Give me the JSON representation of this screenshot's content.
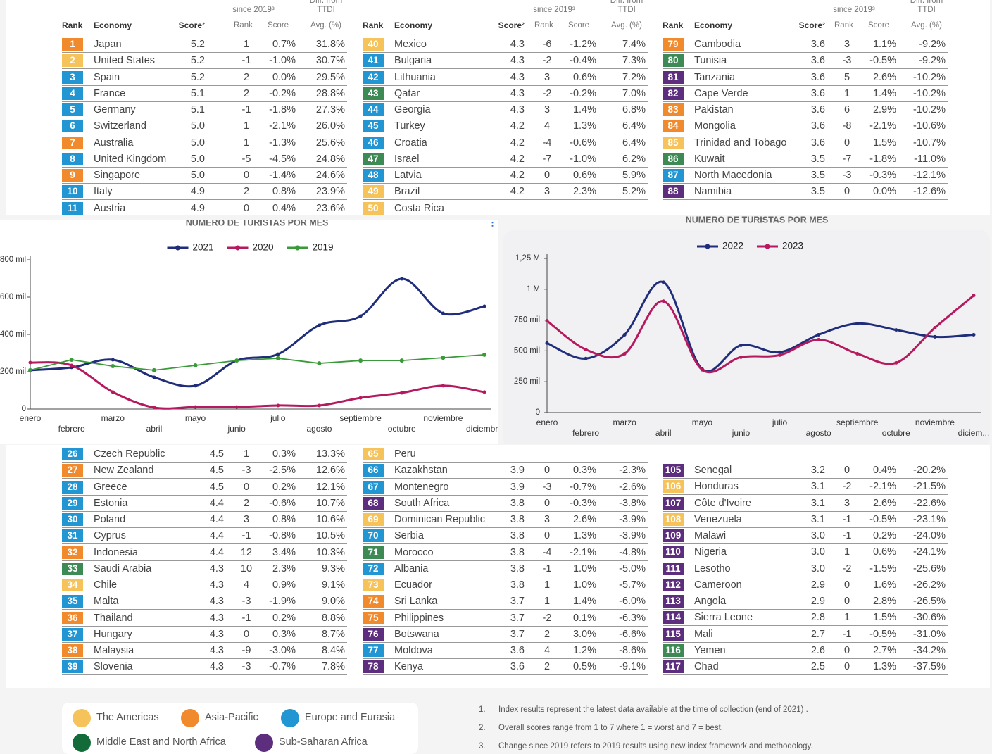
{
  "header": {
    "rank": "Rank",
    "economy": "Economy",
    "score": "Score²",
    "change": "since 2019³",
    "change_rank": "Rank",
    "change_score": "Score",
    "diff": "Diff. from",
    "diff_2": "TTDI",
    "diff_unit": "Avg. (%)"
  },
  "tables": [
    {
      "rows": [
        {
          "cells": [
            "1",
            "Japan",
            "5.2",
            "1",
            "0.7%",
            "31.8%"
          ],
          "color": "#f08a2c"
        },
        {
          "cells": [
            "2",
            "United States",
            "5.2",
            "-1",
            "-1.0%",
            "30.7%"
          ],
          "color": "#f6c25a"
        },
        {
          "cells": [
            "3",
            "Spain",
            "5.2",
            "2",
            "0.0%",
            "29.5%"
          ],
          "color": "#2196d3"
        },
        {
          "cells": [
            "4",
            "France",
            "5.1",
            "2",
            "-0.2%",
            "28.8%"
          ],
          "color": "#2196d3"
        },
        {
          "cells": [
            "5",
            "Germany",
            "5.1",
            "-1",
            "-1.8%",
            "27.3%"
          ],
          "color": "#2196d3"
        },
        {
          "cells": [
            "6",
            "Switzerland",
            "5.0",
            "1",
            "-2.1%",
            "26.0%"
          ],
          "color": "#2196d3"
        },
        {
          "cells": [
            "7",
            "Australia",
            "5.0",
            "1",
            "-1.3%",
            "25.6%"
          ],
          "color": "#f08a2c"
        },
        {
          "cells": [
            "8",
            "United Kingdom",
            "5.0",
            "-5",
            "-4.5%",
            "24.8%"
          ],
          "color": "#2196d3"
        },
        {
          "cells": [
            "9",
            "Singapore",
            "5.0",
            "0",
            "-1.4%",
            "24.6%"
          ],
          "color": "#f08a2c"
        },
        {
          "cells": [
            "10",
            "Italy",
            "4.9",
            "2",
            "0.8%",
            "23.9%"
          ],
          "color": "#2196d3"
        },
        {
          "cells": [
            "11",
            "Austria",
            "4.9",
            "0",
            "0.4%",
            "23.6%"
          ],
          "color": "#2196d3"
        }
      ]
    },
    {
      "rows": [
        {
          "cells": [
            "40",
            "Mexico",
            "4.3",
            "-6",
            "-1.2%",
            "7.4%"
          ],
          "color": "#f6c25a"
        },
        {
          "cells": [
            "41",
            "Bulgaria",
            "4.3",
            "-2",
            "-0.4%",
            "7.3%"
          ],
          "color": "#2196d3"
        },
        {
          "cells": [
            "42",
            "Lithuania",
            "4.3",
            "3",
            "0.6%",
            "7.2%"
          ],
          "color": "#2196d3"
        },
        {
          "cells": [
            "43",
            "Qatar",
            "4.3",
            "-2",
            "-0.2%",
            "7.0%"
          ],
          "color": "#3d8a55"
        },
        {
          "cells": [
            "44",
            "Georgia",
            "4.3",
            "3",
            "1.4%",
            "6.8%"
          ],
          "color": "#2196d3"
        },
        {
          "cells": [
            "45",
            "Turkey",
            "4.2",
            "4",
            "1.3%",
            "6.4%"
          ],
          "color": "#2196d3"
        },
        {
          "cells": [
            "46",
            "Croatia",
            "4.2",
            "-4",
            "-0.6%",
            "6.4%"
          ],
          "color": "#2196d3"
        },
        {
          "cells": [
            "47",
            "Israel",
            "4.2",
            "-7",
            "-1.0%",
            "6.2%"
          ],
          "color": "#3d8a55"
        },
        {
          "cells": [
            "48",
            "Latvia",
            "4.2",
            "0",
            "0.6%",
            "5.9%"
          ],
          "color": "#2196d3"
        },
        {
          "cells": [
            "49",
            "Brazil",
            "4.2",
            "3",
            "2.3%",
            "5.2%"
          ],
          "color": "#f6c25a"
        },
        {
          "cells": [
            "50",
            "Costa Rica"
          ],
          "color": "#f6c25a"
        }
      ]
    },
    {
      "rows": [
        {
          "cells": [
            "79",
            "Cambodia",
            "3.6",
            "3",
            "1.1%",
            "-9.2%"
          ],
          "color": "#f08a2c"
        },
        {
          "cells": [
            "80",
            "Tunisia",
            "3.6",
            "-3",
            "-0.5%",
            "-9.2%"
          ],
          "color": "#3d8a55"
        },
        {
          "cells": [
            "81",
            "Tanzania",
            "3.6",
            "5",
            "2.6%",
            "-10.2%"
          ],
          "color": "#5e2e7e"
        },
        {
          "cells": [
            "82",
            "Cape Verde",
            "3.6",
            "1",
            "1.4%",
            "-10.2%"
          ],
          "color": "#5e2e7e"
        },
        {
          "cells": [
            "83",
            "Pakistan",
            "3.6",
            "6",
            "2.9%",
            "-10.2%"
          ],
          "color": "#f08a2c"
        },
        {
          "cells": [
            "84",
            "Mongolia",
            "3.6",
            "-8",
            "-2.1%",
            "-10.6%"
          ],
          "color": "#f08a2c"
        },
        {
          "cells": [
            "85",
            "Trinidad and Tobago",
            "3.6",
            "0",
            "1.5%",
            "-10.7%"
          ],
          "color": "#f6c25a"
        },
        {
          "cells": [
            "86",
            "Kuwait",
            "3.5",
            "-7",
            "-1.8%",
            "-11.0%"
          ],
          "color": "#3d8a55"
        },
        {
          "cells": [
            "87",
            "North Macedonia",
            "3.5",
            "-3",
            "-0.3%",
            "-12.1%"
          ],
          "color": "#2196d3"
        },
        {
          "cells": [
            "88",
            "Namibia",
            "3.5",
            "0",
            "0.0%",
            "-12.6%"
          ],
          "color": "#5e2e7e"
        }
      ]
    },
    {
      "rows": [
        {
          "cells": [
            "26",
            "Czech Republic",
            "4.5",
            "1",
            "0.3%",
            "13.3%"
          ],
          "color": "#2196d3"
        },
        {
          "cells": [
            "27",
            "New Zealand",
            "4.5",
            "-3",
            "-2.5%",
            "12.6%"
          ],
          "color": "#f08a2c"
        },
        {
          "cells": [
            "28",
            "Greece",
            "4.5",
            "0",
            "0.2%",
            "12.1%"
          ],
          "color": "#2196d3"
        },
        {
          "cells": [
            "29",
            "Estonia",
            "4.4",
            "2",
            "-0.6%",
            "10.7%"
          ],
          "color": "#2196d3"
        },
        {
          "cells": [
            "30",
            "Poland",
            "4.4",
            "3",
            "0.8%",
            "10.6%"
          ],
          "color": "#2196d3"
        },
        {
          "cells": [
            "31",
            "Cyprus",
            "4.4",
            "-1",
            "-0.8%",
            "10.5%"
          ],
          "color": "#2196d3"
        },
        {
          "cells": [
            "32",
            "Indonesia",
            "4.4",
            "12",
            "3.4%",
            "10.3%"
          ],
          "color": "#f08a2c"
        },
        {
          "cells": [
            "33",
            "Saudi Arabia",
            "4.3",
            "10",
            "2.3%",
            "9.3%"
          ],
          "color": "#3d8a55"
        },
        {
          "cells": [
            "34",
            "Chile",
            "4.3",
            "4",
            "0.9%",
            "9.1%"
          ],
          "color": "#f6c25a"
        },
        {
          "cells": [
            "35",
            "Malta",
            "4.3",
            "-3",
            "-1.9%",
            "9.0%"
          ],
          "color": "#2196d3"
        },
        {
          "cells": [
            "36",
            "Thailand",
            "4.3",
            "-1",
            "0.2%",
            "8.8%"
          ],
          "color": "#f08a2c"
        },
        {
          "cells": [
            "37",
            "Hungary",
            "4.3",
            "0",
            "0.3%",
            "8.7%"
          ],
          "color": "#2196d3"
        },
        {
          "cells": [
            "38",
            "Malaysia",
            "4.3",
            "-9",
            "-3.0%",
            "8.4%"
          ],
          "color": "#f08a2c"
        },
        {
          "cells": [
            "39",
            "Slovenia",
            "4.3",
            "-3",
            "-0.7%",
            "7.8%"
          ],
          "color": "#2196d3"
        }
      ]
    },
    {
      "rows": [
        {
          "cells": [
            "65",
            "Peru"
          ],
          "color": "#f6c25a"
        },
        {
          "cells": [
            "66",
            "Kazakhstan",
            "3.9",
            "0",
            "0.3%",
            "-2.3%"
          ],
          "color": "#2196d3"
        },
        {
          "cells": [
            "67",
            "Montenegro",
            "3.9",
            "-3",
            "-0.7%",
            "-2.6%"
          ],
          "color": "#2196d3"
        },
        {
          "cells": [
            "68",
            "South Africa",
            "3.8",
            "0",
            "-0.3%",
            "-3.8%"
          ],
          "color": "#5e2e7e"
        },
        {
          "cells": [
            "69",
            "Dominican Republic",
            "3.8",
            "3",
            "2.6%",
            "-3.9%"
          ],
          "color": "#f6c25a"
        },
        {
          "cells": [
            "70",
            "Serbia",
            "3.8",
            "0",
            "1.3%",
            "-3.9%"
          ],
          "color": "#2196d3"
        },
        {
          "cells": [
            "71",
            "Morocco",
            "3.8",
            "-4",
            "-2.1%",
            "-4.8%"
          ],
          "color": "#3d8a55"
        },
        {
          "cells": [
            "72",
            "Albania",
            "3.8",
            "-1",
            "1.0%",
            "-5.0%"
          ],
          "color": "#2196d3"
        },
        {
          "cells": [
            "73",
            "Ecuador",
            "3.8",
            "1",
            "1.0%",
            "-5.7%"
          ],
          "color": "#f6c25a"
        },
        {
          "cells": [
            "74",
            "Sri Lanka",
            "3.7",
            "1",
            "1.4%",
            "-6.0%"
          ],
          "color": "#f08a2c"
        },
        {
          "cells": [
            "75",
            "Philippines",
            "3.7",
            "-2",
            "0.1%",
            "-6.3%"
          ],
          "color": "#f08a2c"
        },
        {
          "cells": [
            "76",
            "Botswana",
            "3.7",
            "2",
            "3.0%",
            "-6.6%"
          ],
          "color": "#5e2e7e"
        },
        {
          "cells": [
            "77",
            "Moldova",
            "3.6",
            "4",
            "1.2%",
            "-8.6%"
          ],
          "color": "#2196d3"
        },
        {
          "cells": [
            "78",
            "Kenya",
            "3.6",
            "2",
            "0.5%",
            "-9.1%"
          ],
          "color": "#5e2e7e"
        }
      ]
    },
    {
      "rows": [
        {
          "cells": [
            "105",
            "Senegal",
            "3.2",
            "0",
            "0.4%",
            "-20.2%"
          ],
          "color": "#5e2e7e"
        },
        {
          "cells": [
            "106",
            "Honduras",
            "3.1",
            "-2",
            "-2.1%",
            "-21.5%"
          ],
          "color": "#f6c25a"
        },
        {
          "cells": [
            "107",
            "Côte d'Ivoire",
            "3.1",
            "3",
            "2.6%",
            "-22.6%"
          ],
          "color": "#5e2e7e"
        },
        {
          "cells": [
            "108",
            "Venezuela",
            "3.1",
            "-1",
            "-0.5%",
            "-23.1%"
          ],
          "color": "#f6c25a"
        },
        {
          "cells": [
            "109",
            "Malawi",
            "3.0",
            "-1",
            "0.2%",
            "-24.0%"
          ],
          "color": "#5e2e7e"
        },
        {
          "cells": [
            "110",
            "Nigeria",
            "3.0",
            "1",
            "0.6%",
            "-24.1%"
          ],
          "color": "#5e2e7e"
        },
        {
          "cells": [
            "111",
            "Lesotho",
            "3.0",
            "-2",
            "-1.5%",
            "-25.6%"
          ],
          "color": "#5e2e7e"
        },
        {
          "cells": [
            "112",
            "Cameroon",
            "2.9",
            "0",
            "1.6%",
            "-26.2%"
          ],
          "color": "#5e2e7e"
        },
        {
          "cells": [
            "113",
            "Angola",
            "2.9",
            "0",
            "2.8%",
            "-26.5%"
          ],
          "color": "#5e2e7e"
        },
        {
          "cells": [
            "114",
            "Sierra Leone",
            "2.8",
            "1",
            "1.5%",
            "-30.6%"
          ],
          "color": "#5e2e7e"
        },
        {
          "cells": [
            "115",
            "Mali",
            "2.7",
            "-1",
            "-0.5%",
            "-31.0%"
          ],
          "color": "#5e2e7e"
        },
        {
          "cells": [
            "116",
            "Yemen",
            "2.6",
            "0",
            "2.7%",
            "-34.2%"
          ],
          "color": "#3d8a55"
        },
        {
          "cells": [
            "117",
            "Chad",
            "2.5",
            "0",
            "1.3%",
            "-37.5%"
          ],
          "color": "#5e2e7e"
        }
      ]
    }
  ],
  "legend": [
    {
      "name": "The Americas",
      "color": "#f6c25a"
    },
    {
      "name": "Asia-Pacific",
      "color": "#f08a2c"
    },
    {
      "name": "Europe and Eurasia",
      "color": "#2196d3"
    },
    {
      "name": "Middle East and North Africa",
      "color": "#136b3a"
    },
    {
      "name": "Sub-Saharan Africa",
      "color": "#5e2e7e"
    }
  ],
  "footnotes": [
    {
      "number": "1.",
      "text": "Index results represent the latest data available at the time of collection (end of 2021) ."
    },
    {
      "number": "2.",
      "text": "Overall scores range from 1 to 7 where 1 = worst and 7 = best."
    },
    {
      "number": "3.",
      "text": "Change since 2019 refers to 2019 results using new index framework and methodology."
    }
  ],
  "chart_data": [
    {
      "type": "line",
      "title": "NUMERO DE TURISTAS POR MES",
      "categories": [
        "enero",
        "febrero",
        "marzo",
        "abril",
        "mayo",
        "junio",
        "julio",
        "agosto",
        "septiembre",
        "octubre",
        "noviembre",
        "diciembre"
      ],
      "series": [
        {
          "name": "2021",
          "color": "#1f2d7a",
          "smooth": true,
          "values": [
            208000,
            223000,
            264000,
            170000,
            125000,
            260000,
            294000,
            449000,
            498000,
            698000,
            513000,
            551000
          ]
        },
        {
          "name": "2020",
          "color": "#b5195e",
          "smooth": true,
          "values": [
            249000,
            234000,
            91000,
            8000,
            11000,
            11000,
            19000,
            19000,
            60000,
            87000,
            125000,
            91000
          ]
        },
        {
          "name": "2019",
          "color": "#3a9a3a",
          "smooth": false,
          "values": [
            208000,
            264000,
            230000,
            208000,
            234000,
            260000,
            272000,
            245000,
            260000,
            260000,
            275000,
            291000
          ]
        }
      ],
      "ylim": [
        0,
        800000
      ],
      "yticks": [
        0,
        {
          "value": 200000,
          "label": "200 mil"
        },
        {
          "value": 400000,
          "label": "400 mil"
        },
        {
          "value": 600000,
          "label": "600 mil"
        },
        {
          "value": 800000,
          "label": "800 mil"
        }
      ]
    },
    {
      "type": "line",
      "title": "NUMERO DE TURISTAS POR MES",
      "categories": [
        "enero",
        "febrero",
        "marzo",
        "abril",
        "mayo",
        "junio",
        "julio",
        "agosto",
        "septiembre",
        "octubre",
        "noviembre",
        "diciem..."
      ],
      "series": [
        {
          "name": "2022",
          "color": "#1f2d7a",
          "smooth": true,
          "values": [
            563000,
            438000,
            631000,
            1057000,
            352000,
            545000,
            489000,
            631000,
            722000,
            670000,
            614000,
            631000
          ]
        },
        {
          "name": "2023",
          "color": "#b5195e",
          "smooth": true,
          "values": [
            744000,
            511000,
            477000,
            903000,
            347000,
            449000,
            466000,
            591000,
            477000,
            403000,
            688000,
            949000
          ]
        }
      ],
      "ylim": [
        0,
        1250000
      ],
      "yticks": [
        0,
        {
          "value": 250000,
          "label": "250 mil"
        },
        {
          "value": 500000,
          "label": "500 mil"
        },
        {
          "value": 750000,
          "label": "750 mil"
        },
        {
          "value": 1000000,
          "label": "1 M"
        },
        {
          "value": 1250000,
          "label": "1,25 M"
        }
      ]
    }
  ]
}
